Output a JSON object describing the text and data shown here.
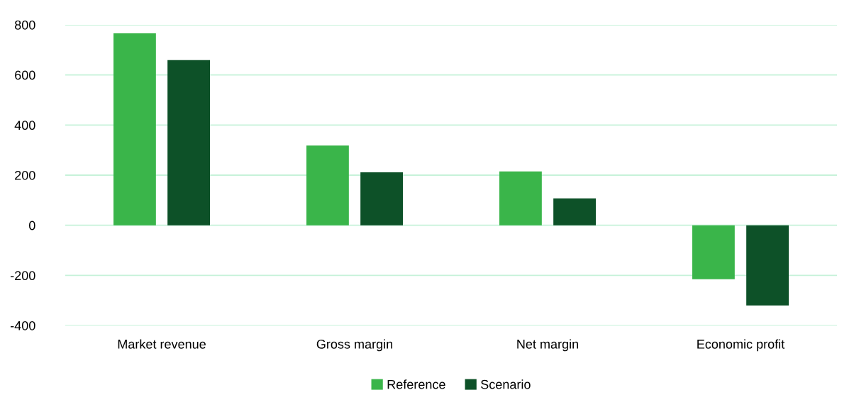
{
  "chart_data": {
    "type": "bar",
    "categories": [
      "Market revenue",
      "Gross margin",
      "Net margin",
      "Economic profit"
    ],
    "series": [
      {
        "name": "Reference",
        "color": "#3ab54a",
        "values": [
          766,
          318,
          215,
          -215
        ]
      },
      {
        "name": "Scenario",
        "color": "#0d5128",
        "values": [
          659,
          211,
          107,
          -320
        ]
      }
    ],
    "ylim": [
      -400,
      800
    ],
    "yticks": [
      -400,
      -200,
      0,
      200,
      400,
      600,
      800
    ],
    "grid": "y",
    "legend": "bottom"
  }
}
